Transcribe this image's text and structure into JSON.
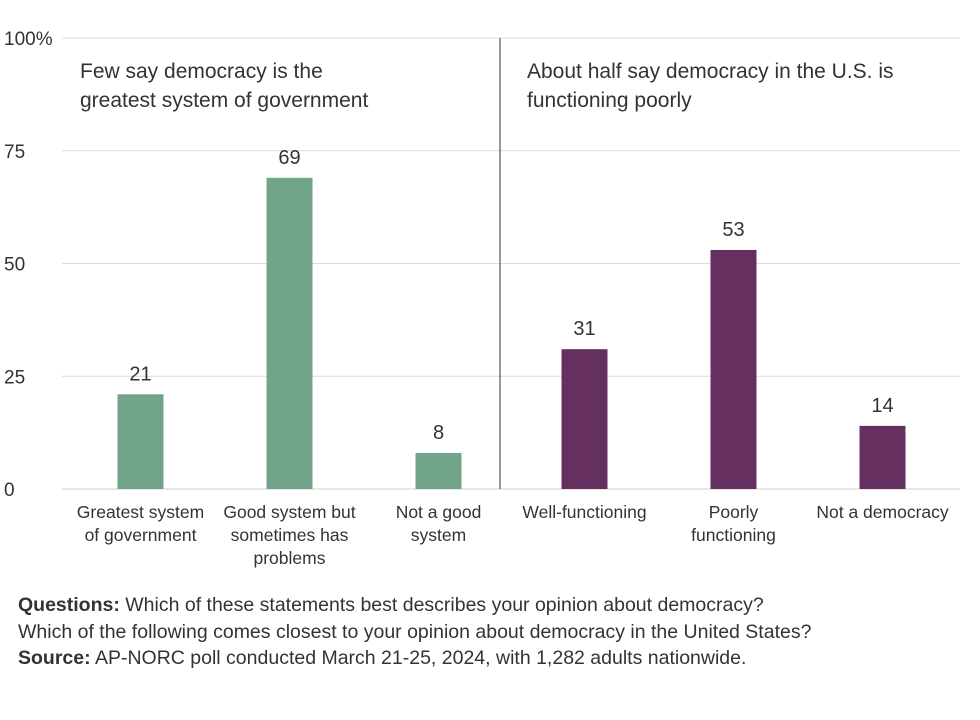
{
  "chart_data": {
    "type": "bar",
    "ylim": [
      0,
      100
    ],
    "yticks": [
      {
        "value": 0,
        "label": "0"
      },
      {
        "value": 25,
        "label": "25"
      },
      {
        "value": 50,
        "label": "50"
      },
      {
        "value": 75,
        "label": "75"
      },
      {
        "value": 100,
        "label": "100%"
      }
    ],
    "grid": true,
    "panels": [
      {
        "title": [
          "Few say democracy is the",
          "greatest system of government"
        ],
        "color": "#72a48a",
        "categories": [
          [
            "Greatest system",
            "of government"
          ],
          [
            "Good system but",
            "sometimes has",
            "problems"
          ],
          [
            "Not a good",
            "system"
          ]
        ],
        "values": [
          21,
          69,
          8
        ]
      },
      {
        "title": [
          "About half say democracy in the U.S. is",
          "functioning poorly"
        ],
        "color": "#652f60",
        "categories": [
          [
            "Well-functioning"
          ],
          [
            "Poorly",
            "functioning"
          ],
          [
            "Not a democracy"
          ]
        ],
        "values": [
          31,
          53,
          14
        ]
      }
    ]
  },
  "notes": {
    "questions_label": "Questions:",
    "questions_line1": " Which of these statements best describes your opinion about democracy?",
    "questions_line2": "Which of the following comes closest to your opinion about democracy in the United States?",
    "source_label": "Source:",
    "source_text": " AP-NORC poll conducted March 21-25, 2024, with 1,282 adults nationwide."
  }
}
